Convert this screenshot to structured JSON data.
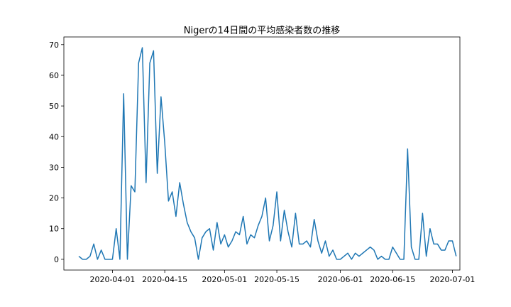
{
  "chart_data": {
    "type": "line",
    "title": "Nigerの14日間の平均感染者数の推移",
    "xlabel": "",
    "ylabel": "",
    "x_start": "2020-03-23",
    "x_end": "2020-06-30",
    "xlim": [
      "2020-03-19",
      "2020-07-03"
    ],
    "ylim": [
      -3.5,
      72.5
    ],
    "y_ticks": [
      0,
      10,
      20,
      30,
      40,
      50,
      60,
      70
    ],
    "x_ticks": [
      "2020-04-01",
      "2020-04-15",
      "2020-05-01",
      "2020-05-15",
      "2020-06-01",
      "2020-06-15",
      "2020-07-01"
    ],
    "grid": false,
    "color": "#1f77b4",
    "series": [
      {
        "values": [
          1,
          0,
          0,
          1,
          5,
          0,
          3,
          0,
          0,
          0,
          10,
          0,
          54,
          0,
          24,
          22,
          64,
          69,
          25,
          64,
          68,
          28,
          53,
          38,
          19,
          22,
          14,
          25,
          18,
          12,
          9,
          7,
          0,
          7,
          9,
          10,
          3,
          12,
          5,
          8,
          4,
          6,
          9,
          8,
          14,
          5,
          8,
          7,
          11,
          14,
          20,
          6,
          11,
          22,
          6,
          16,
          9,
          4,
          15,
          5,
          5,
          6,
          4,
          13,
          6,
          2,
          6,
          1,
          3,
          0,
          0,
          1,
          2,
          0,
          2,
          1,
          2,
          3,
          4,
          3,
          0,
          1,
          0,
          0,
          4,
          2,
          0,
          0,
          36,
          4,
          0,
          0,
          15,
          1,
          10,
          5,
          5,
          3,
          3,
          6,
          6,
          1
        ]
      }
    ]
  }
}
